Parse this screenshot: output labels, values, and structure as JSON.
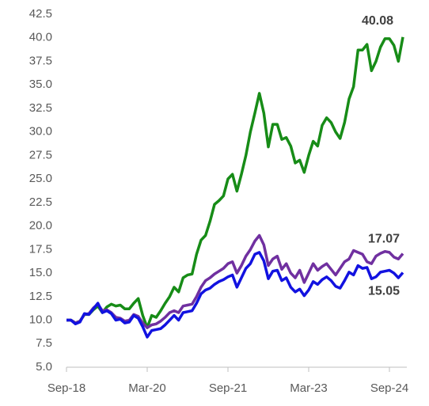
{
  "chart_data": {
    "type": "line",
    "categories": [
      "Sep-18",
      null,
      null,
      null,
      null,
      null,
      null,
      null,
      null,
      null,
      null,
      null,
      null,
      null,
      null,
      null,
      null,
      null,
      "Mar-20",
      null,
      null,
      null,
      null,
      null,
      null,
      null,
      null,
      null,
      null,
      null,
      null,
      null,
      null,
      null,
      null,
      null,
      "Sep-21",
      null,
      null,
      null,
      null,
      null,
      null,
      null,
      null,
      null,
      null,
      null,
      null,
      null,
      null,
      null,
      null,
      null,
      "Mar-23",
      null,
      null,
      null,
      null,
      null,
      null,
      null,
      null,
      null,
      null,
      null,
      null,
      null,
      null,
      null,
      null,
      null,
      "Sep-24",
      null,
      null,
      null
    ],
    "series": [
      {
        "color": "#178c17",
        "values": [
          10,
          10,
          9.7,
          9.9,
          10.6,
          10.6,
          11.1,
          11.5,
          10.8,
          11.4,
          11.7,
          11.5,
          11.6,
          11.2,
          11.2,
          11.8,
          12.3,
          10.5,
          9.2,
          10.5,
          10.3,
          11,
          11.8,
          12.5,
          13.5,
          13,
          14.5,
          14.8,
          14.9,
          17,
          18.5,
          19,
          20.5,
          22.3,
          22.7,
          23.2,
          25,
          25.5,
          23.7,
          25.5,
          27.5,
          30,
          32,
          34.1,
          32,
          28.4,
          30.8,
          30.8,
          29.2,
          29.4,
          28.5,
          26.7,
          27,
          25.7,
          27.5,
          29,
          28.5,
          30.7,
          31.5,
          31,
          30,
          29.3,
          31,
          33.5,
          34.8,
          38.7,
          38.7,
          39.3,
          36.5,
          37.5,
          39,
          39.9,
          39.9,
          39.2,
          37.5,
          40.08
        ]
      },
      {
        "color": "#7030a0",
        "values": [
          10,
          10,
          9.7,
          9.9,
          10.6,
          10.7,
          11.3,
          11.7,
          11,
          11.1,
          10.8,
          10.3,
          10.2,
          9.9,
          10,
          10.6,
          10.4,
          9.7,
          9.2,
          9.5,
          9.6,
          9.9,
          10.3,
          10.8,
          11,
          10.8,
          11.5,
          11.6,
          11.7,
          12.5,
          13.5,
          14.2,
          14.5,
          14.9,
          15.2,
          15.5,
          16,
          16.2,
          15,
          15.8,
          16.8,
          17.5,
          18.4,
          19,
          18,
          15.8,
          16.5,
          16.8,
          15.4,
          16,
          15,
          14.5,
          15.3,
          14,
          15,
          16,
          15.3,
          15.7,
          16,
          15.4,
          14.8,
          15.5,
          16.2,
          16.5,
          17.4,
          17.2,
          17,
          16.2,
          16,
          16.8,
          17.1,
          17.3,
          17.2,
          16.7,
          16.5,
          17.07
        ]
      },
      {
        "color": "#1212e0",
        "values": [
          10,
          10,
          9.6,
          9.8,
          10.7,
          10.6,
          11.2,
          11.8,
          10.8,
          11,
          10.7,
          10,
          10.1,
          9.7,
          9.8,
          10.5,
          10.2,
          9.3,
          8.2,
          8.9,
          9,
          9.1,
          9.5,
          10,
          10.5,
          10,
          10.8,
          10.9,
          11,
          11.8,
          12.8,
          13.2,
          13.4,
          13.8,
          14.1,
          14.3,
          14.6,
          14.8,
          13.5,
          14.5,
          15.5,
          16,
          17,
          17.2,
          16.3,
          14.4,
          15.2,
          15.3,
          14.2,
          14.5,
          13.5,
          13,
          13.3,
          12.6,
          13.2,
          14.1,
          13.8,
          14.3,
          14.6,
          14.2,
          13.6,
          13.4,
          14.2,
          15.1,
          14.8,
          15.8,
          15.5,
          15.6,
          14.4,
          14.6,
          15.1,
          15.2,
          15.3,
          15,
          14.5,
          15.05
        ]
      }
    ],
    "ylim": [
      5,
      42.5
    ],
    "yticks": [
      {
        "value": 5,
        "label": "5.0"
      },
      7.5,
      {
        "value": 10,
        "label": "10.0"
      },
      12.5,
      {
        "value": 15,
        "label": "15.0"
      },
      17.5,
      {
        "value": 20,
        "label": "20.0"
      },
      22.5,
      {
        "value": 25,
        "label": "25.0"
      },
      27.5,
      {
        "value": 30,
        "label": "30.0"
      },
      32.5,
      {
        "value": 35,
        "label": "35.0"
      },
      37.5,
      {
        "value": 40,
        "label": "40.0"
      },
      42.5
    ],
    "grid": false
  }
}
